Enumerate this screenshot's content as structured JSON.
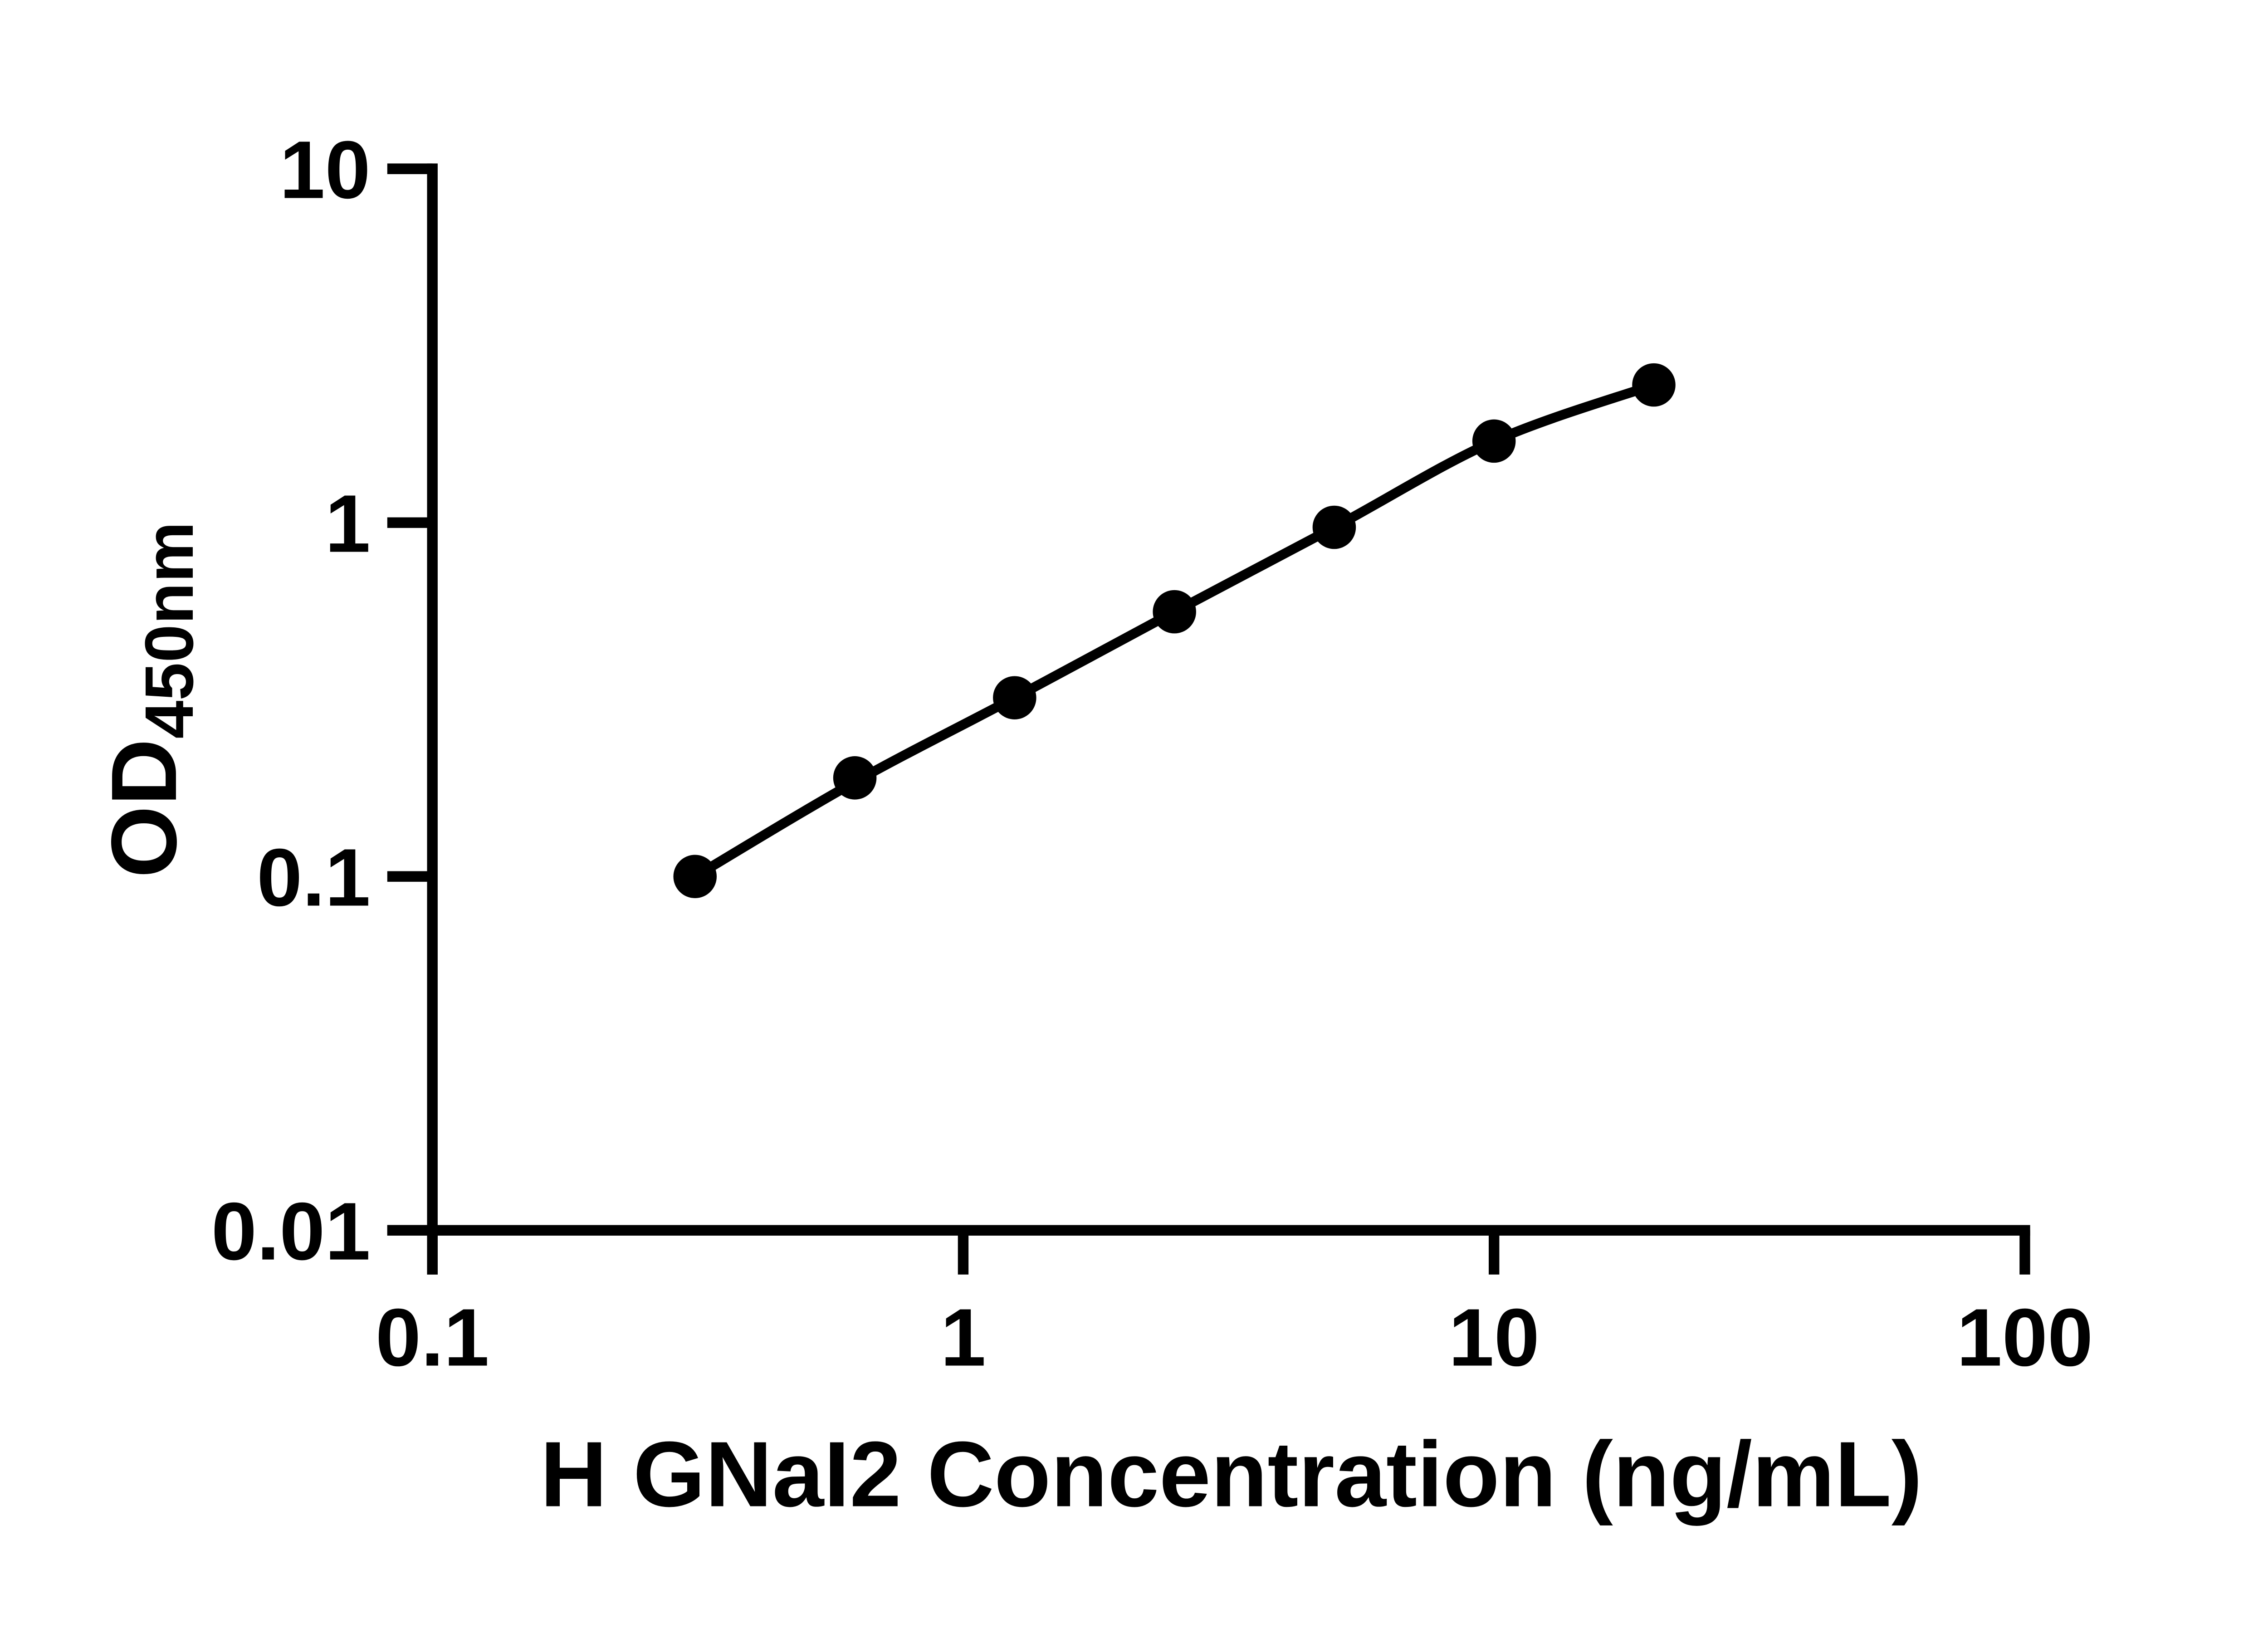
{
  "chart_data": {
    "type": "scatter",
    "subtype": "standard-curve-with-fit-line",
    "title": "",
    "xlabel": "H GNaI2 Concentration (ng/mL)",
    "ylabel_main": "OD",
    "ylabel_sub": "450nm",
    "x_scale": "log10",
    "y_scale": "log10",
    "xlim": [
      0.1,
      100
    ],
    "ylim": [
      0.01,
      10
    ],
    "x_ticks": [
      0.1,
      1,
      10,
      100
    ],
    "x_tick_labels": [
      "0.1",
      "1",
      "10",
      "100"
    ],
    "y_ticks": [
      10,
      1,
      0.1,
      0.01
    ],
    "y_tick_labels": [
      "10",
      "1",
      "0.1",
      "0.01"
    ],
    "grid": false,
    "legend_position": "none",
    "background_color": "#ffffff",
    "axis_color": "#000000",
    "series": [
      {
        "marker": "filled-circle",
        "color": "#000000",
        "x": [
          0.3125,
          0.625,
          1.25,
          2.5,
          5,
          10,
          20
        ],
        "y": [
          0.1,
          0.19,
          0.32,
          0.56,
          0.97,
          1.7,
          2.45
        ]
      }
    ],
    "fit_curve": {
      "style": "smooth-line",
      "color": "#000000",
      "x": [
        0.3125,
        0.625,
        1.25,
        2.5,
        5,
        10,
        20
      ],
      "y": [
        0.1,
        0.185,
        0.32,
        0.56,
        0.97,
        1.7,
        2.45
      ]
    }
  }
}
